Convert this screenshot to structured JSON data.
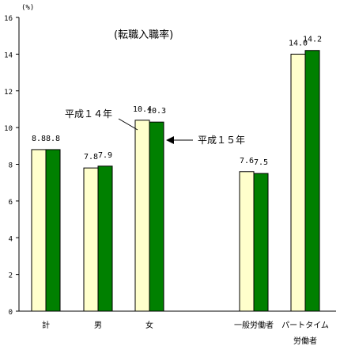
{
  "chart_data": {
    "type": "bar",
    "title": "(転職入職率)",
    "unit": "(%)",
    "ylim": [
      0,
      16
    ],
    "yticks": [
      0,
      2,
      4,
      6,
      8,
      10,
      12,
      14,
      16
    ],
    "categories": [
      "計",
      "男",
      "女",
      "一般労働者",
      "パートタイム\n労働者"
    ],
    "series": [
      {
        "name": "平成１４年",
        "values": [
          8.8,
          7.8,
          10.4,
          7.6,
          14.0
        ],
        "color": "#FFFFCC"
      },
      {
        "name": "平成１５年",
        "values": [
          8.8,
          7.9,
          10.3,
          7.5,
          14.2
        ],
        "color": "#008000"
      }
    ],
    "value_labels": [
      [
        "8.8",
        "7.8",
        "10.4",
        "7.6",
        "14.0"
      ],
      [
        "8.8",
        "7.9",
        "10.3",
        "7.5",
        "14.2"
      ]
    ],
    "grid": false,
    "legend": "arrow annotations"
  }
}
